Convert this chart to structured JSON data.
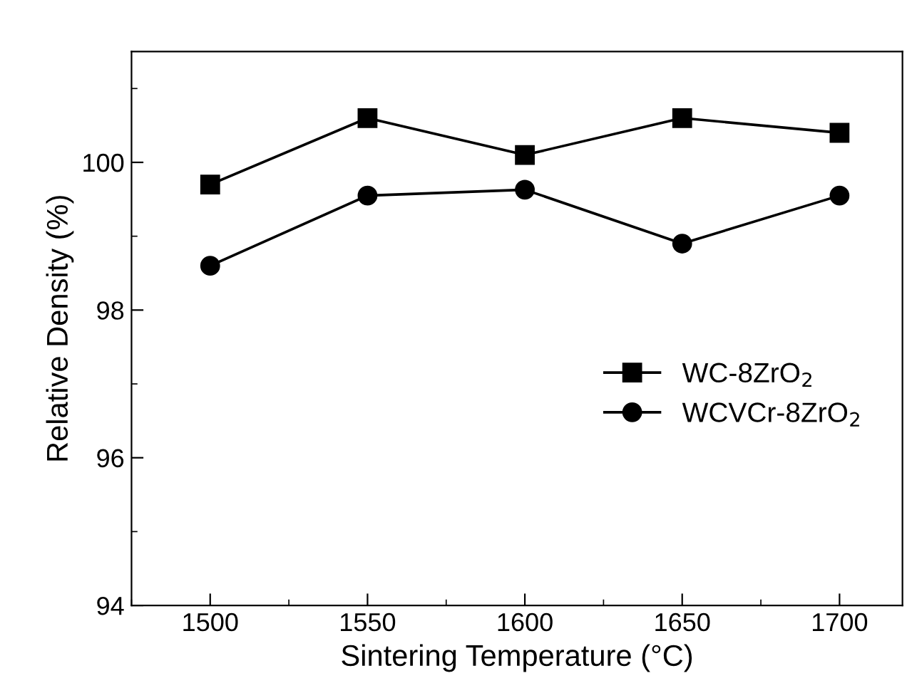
{
  "chart_data": {
    "type": "line",
    "xlabel": "Sintering Temperature (°C)",
    "ylabel": "Relative Density (%)",
    "x": [
      1500,
      1550,
      1600,
      1650,
      1700
    ],
    "series": [
      {
        "name": "WC-8ZrO$_{2}$",
        "color": "#000000",
        "marker": "square",
        "values": [
          99.7,
          100.6,
          100.1,
          100.6,
          100.4
        ]
      },
      {
        "name": "WCVCr-8ZrO$_{2}$",
        "color": "#000000",
        "marker": "circle",
        "values": [
          98.6,
          99.55,
          99.63,
          98.9,
          99.55
        ]
      }
    ],
    "xlim": [
      1475,
      1720
    ],
    "ylim": [
      94,
      101.5
    ],
    "xticks": [
      1500,
      1550,
      1600,
      1650,
      1700
    ],
    "yticks": [
      94,
      96,
      98,
      100
    ],
    "line_style": "solid",
    "grid": false,
    "legend": "right"
  }
}
